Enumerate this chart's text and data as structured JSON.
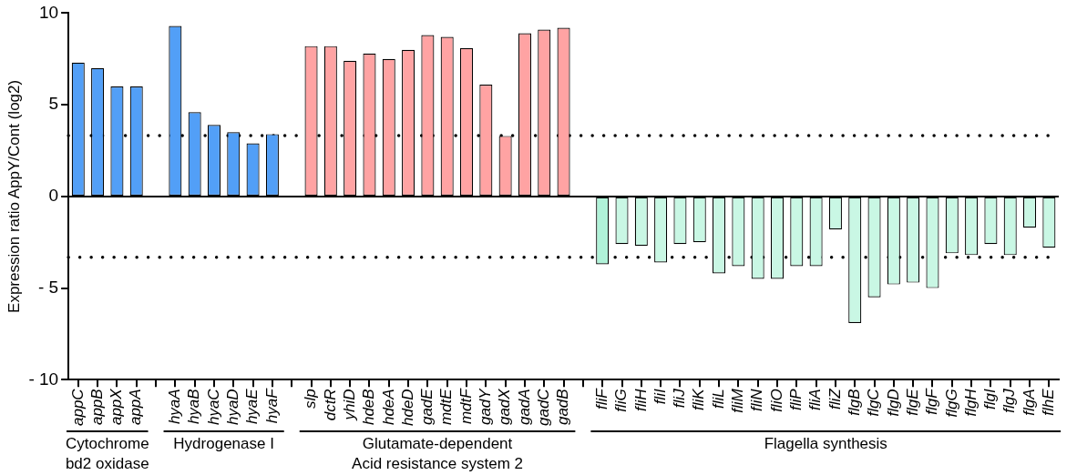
{
  "chart_data": {
    "type": "bar",
    "ylabel": "Expression ratio AppY/Cont (log2)",
    "categories": [
      "appC",
      "appB",
      "appX",
      "appA",
      null,
      "hyaA",
      "hyaB",
      "hyaC",
      "hyaD",
      "hyaE",
      "hyaF",
      null,
      "slp",
      "dctR",
      "yhiD",
      "hdeB",
      "hdeA",
      "hdeD",
      "gadE",
      "mdtE",
      "mdtF",
      "gadY",
      "gadX",
      "gadA",
      "gadC",
      "gadB",
      null,
      "fliF",
      "fliG",
      "fliH",
      "fliI",
      "fliJ",
      "fliK",
      "fliL",
      "fliM",
      "fliN",
      "fliO",
      "fliP",
      "fliA",
      "fliZ",
      "flgB",
      "flgC",
      "flgD",
      "flgE",
      "flgF",
      "flgG",
      "flgH",
      "flgI",
      "flgJ",
      "flgA",
      "flhE"
    ],
    "values": [
      7.3,
      7.0,
      6.0,
      6.0,
      null,
      9.3,
      4.6,
      3.9,
      3.5,
      2.9,
      3.4,
      null,
      8.2,
      8.2,
      7.4,
      7.8,
      7.5,
      8.0,
      8.8,
      8.7,
      8.1,
      6.1,
      3.3,
      8.9,
      9.1,
      9.2,
      null,
      -3.7,
      -2.6,
      -2.7,
      -3.6,
      -2.6,
      -2.5,
      -4.2,
      -3.8,
      -4.5,
      -4.5,
      -3.8,
      -3.8,
      -1.8,
      -6.9,
      -5.5,
      -4.8,
      -4.7,
      -5.0,
      -3.1,
      -3.2,
      -2.6,
      -3.2,
      -1.7,
      -2.8
    ],
    "colors": [
      "#529ff7",
      "#529ff7",
      "#529ff7",
      "#529ff7",
      null,
      "#529ff7",
      "#529ff7",
      "#529ff7",
      "#529ff7",
      "#529ff7",
      "#529ff7",
      null,
      "#ffa3a3",
      "#ffa3a3",
      "#ffa3a3",
      "#ffa3a3",
      "#ffa3a3",
      "#ffa3a3",
      "#ffa3a3",
      "#ffa3a3",
      "#ffa3a3",
      "#ffa3a3",
      "#ffa3a3",
      "#ffa3a3",
      "#ffa3a3",
      "#ffa3a3",
      null,
      "#b0f2d8",
      "#c9f7e4",
      "#c9f7e4",
      "#c9f7e4",
      "#c9f7e4",
      "#c9f7e4",
      "#c9f7e4",
      "#c9f7e4",
      "#c9f7e4",
      "#c9f7e4",
      "#c9f7e4",
      "#c9f7e4",
      "#c9f7e4",
      "#c9f7e4",
      "#c9f7e4",
      "#c9f7e4",
      "#c9f7e4",
      "#c9f7e4",
      "#c9f7e4",
      "#c9f7e4",
      "#c9f7e4",
      "#c9f7e4",
      "#c9f7e4",
      "#c9f7e4"
    ],
    "ylim": [
      -10,
      10
    ],
    "yticks": [
      {
        "value": -10,
        "label": "- 10"
      },
      {
        "value": -5,
        "label": "- 5"
      },
      0,
      5,
      10
    ],
    "ref_lines": [
      {
        "axis": "y",
        "value": 0,
        "line_style": "solid"
      },
      {
        "axis": "y",
        "value": 3.32,
        "line_style": "dotted"
      },
      {
        "axis": "y",
        "value": -3.32,
        "line_style": "dotted"
      }
    ],
    "annotations": [
      "Cytochrome\nbd2 oxidase",
      "Hydrogenase I",
      "Glutamate-dependent\nAcid resistance system 2",
      "Flagella synthesis"
    ]
  }
}
